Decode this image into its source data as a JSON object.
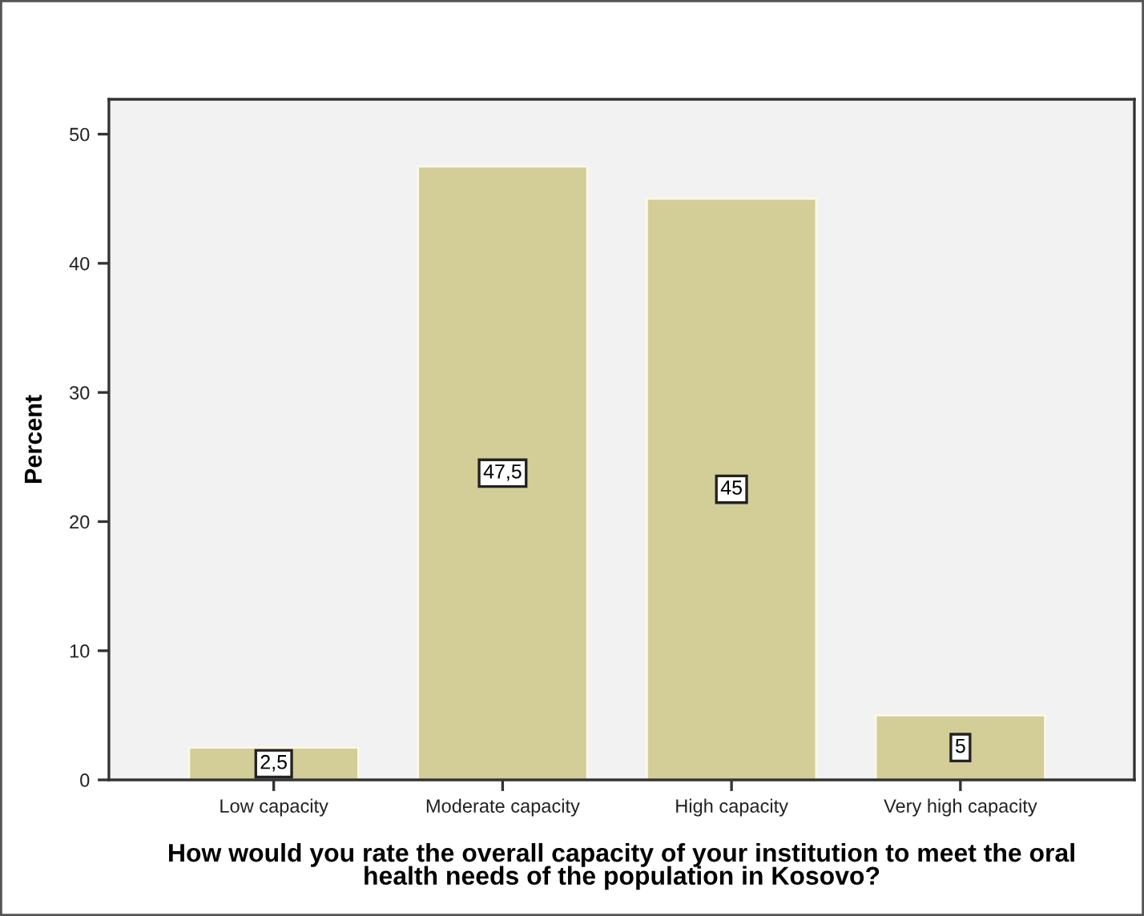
{
  "chart_data": {
    "type": "bar",
    "categories": [
      "Low capacity",
      "Moderate capacity",
      "High capacity",
      "Very high capacity"
    ],
    "values": [
      2.5,
      47.5,
      45,
      5
    ],
    "value_labels": [
      "2,5",
      "47,5",
      "45",
      "5"
    ],
    "color": "#d3cd97",
    "xlabel": "How would you rate the overall capacity of your institution to meet the oral health needs of the population in Kosovo?",
    "ylabel": "Percent",
    "ylim": [
      0,
      52.7
    ],
    "yticks": [
      0,
      10,
      20,
      30,
      40,
      50
    ]
  }
}
